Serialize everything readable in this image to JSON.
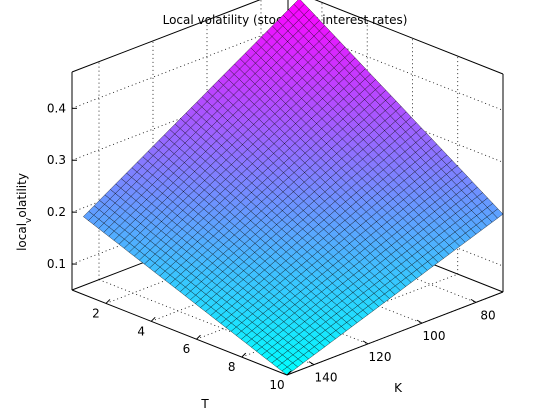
{
  "chart_data": {
    "type": "surface",
    "title": "Local volatility (stochastic interest rates)",
    "xlabel": "T",
    "ylabel": "K",
    "zlabel": "local_volatility",
    "zlabel_main": "local",
    "zlabel_sub": "v",
    "zlabel_rest": "olatility",
    "x_ticks": [
      "2",
      "4",
      "6",
      "8",
      "10"
    ],
    "x_tick_values": [
      2,
      4,
      6,
      8,
      10
    ],
    "y_ticks": [
      "80",
      "100",
      "120",
      "140"
    ],
    "y_tick_values": [
      80,
      100,
      120,
      140
    ],
    "z_ticks": [
      "0.1",
      "0.2",
      "0.3",
      "0.4"
    ],
    "z_tick_values": [
      0.1,
      0.2,
      0.3,
      0.4
    ],
    "xlim": [
      0.5,
      10
    ],
    "ylim": [
      70,
      150
    ],
    "zlim": [
      0.05,
      0.47
    ],
    "grid": true,
    "colormap": "cool",
    "colormap_low": "#00ffff",
    "colormap_high": "#ff00ff",
    "edge_color": "#000000",
    "surface": {
      "x": [
        1,
        10
      ],
      "y": [
        70,
        150
      ],
      "corners": {
        "T1_K70": 0.46,
        "T1_K150": 0.2,
        "T10_K70": 0.2,
        "T10_K150": 0.05
      }
    }
  }
}
